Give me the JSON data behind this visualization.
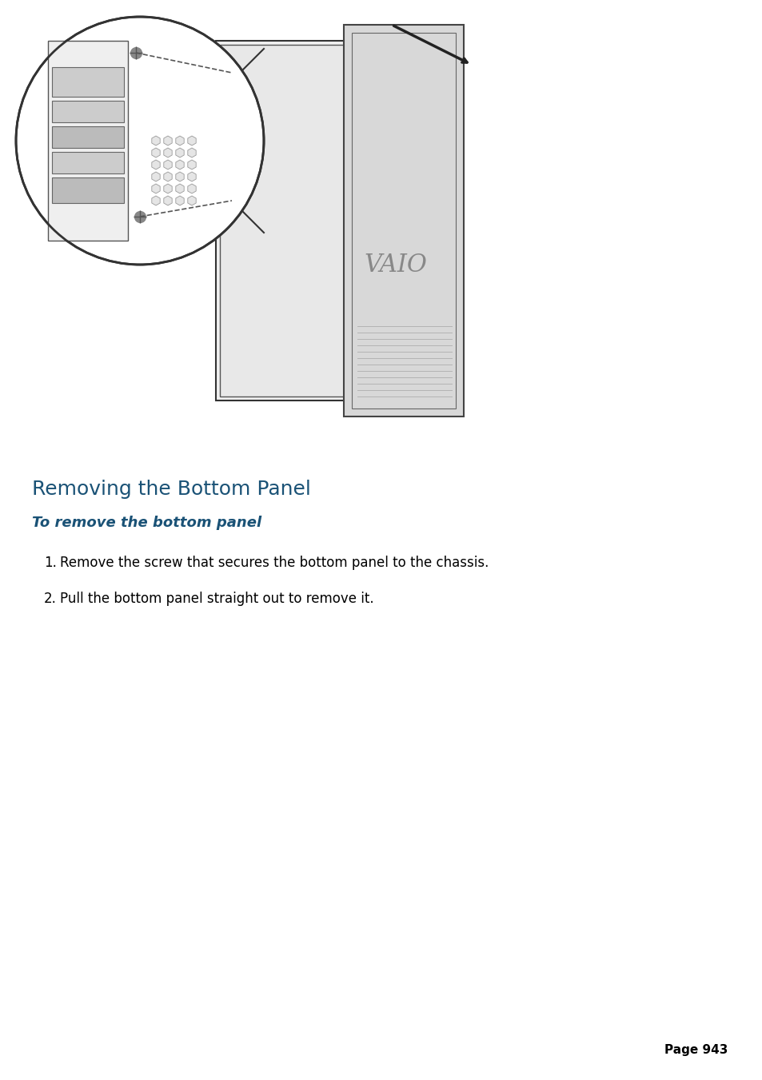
{
  "title": "Removing the Bottom Panel",
  "subtitle": "To remove the bottom panel",
  "instructions": [
    "Remove the screw that secures the bottom panel to the chassis.",
    "Pull the bottom panel straight out to remove it."
  ],
  "page_number": "Page 943",
  "title_color": "#1a5276",
  "subtitle_color": "#1a5276",
  "body_color": "#000000",
  "background_color": "#ffffff",
  "title_fontsize": 18,
  "subtitle_fontsize": 13,
  "body_fontsize": 12,
  "page_fontsize": 11
}
